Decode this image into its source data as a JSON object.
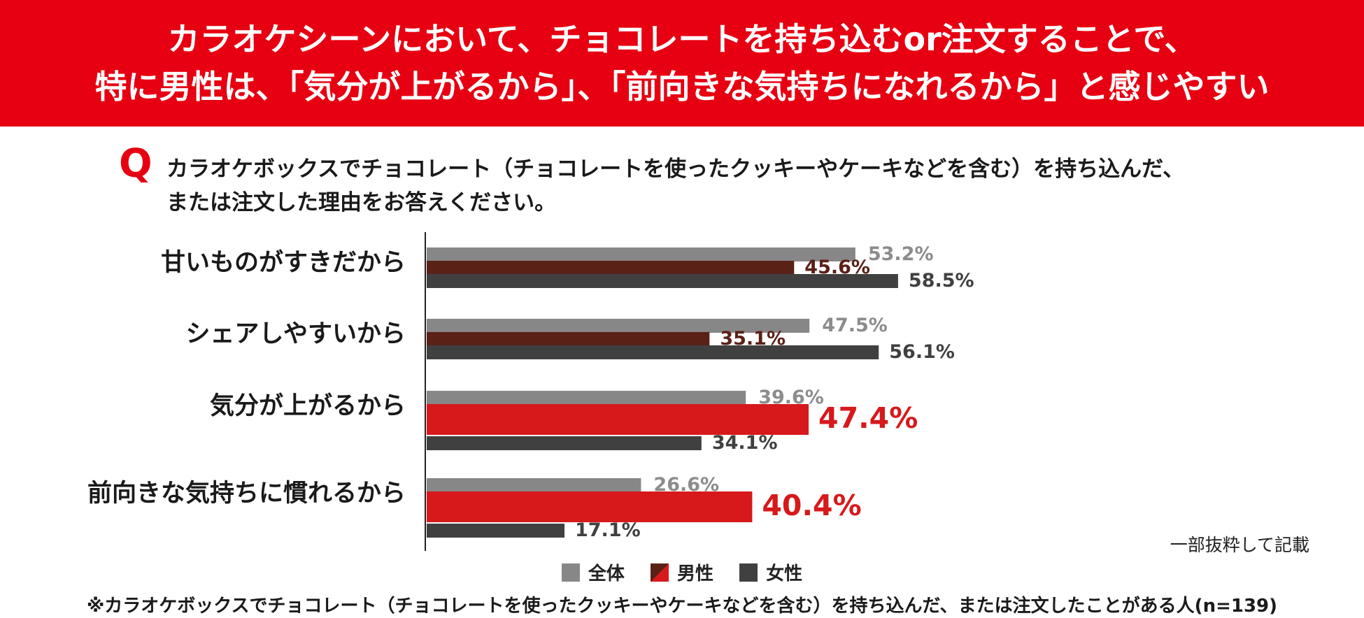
{
  "title": {
    "line1": "カラオケシーンにおいて、チョコレートを持ち込むor注文することで、",
    "line2": "特に男性は、「気分が上がるから」、「前向きな気持ちになれるから」と感じやすい"
  },
  "question": {
    "mark": "Q",
    "line1": "カラオケボックスでチョコレート（チョコレートを使ったクッキーやケーキなどを含む）を持ち込んだ、",
    "line2": "または注文した理由をお答えください。"
  },
  "note_extract": "一部抜粋して記載",
  "legend": [
    {
      "label": "全体",
      "color": "#878787"
    },
    {
      "label": "男性",
      "color": "#d7191c"
    },
    {
      "label": "女性",
      "color": "#404040"
    }
  ],
  "footnote": "※カラオケボックスでチョコレート（チョコレートを使ったクッキーやケーキなどを含む）を持ち込んだ、または注文したことがある人(n=139)",
  "chart_data": {
    "type": "bar",
    "orientation": "horizontal",
    "categories": [
      "甘いものがすきだから",
      "シェアしやすいから",
      "気分が上がるから",
      "前向きな気持ちに慣れるから"
    ],
    "series": [
      {
        "name": "全体",
        "values": [
          53.2,
          47.5,
          39.6,
          26.6
        ],
        "labels": [
          "53.2%",
          "47.5%",
          "39.6%",
          "26.6%"
        ]
      },
      {
        "name": "男性",
        "values": [
          45.6,
          35.1,
          47.4,
          40.4
        ],
        "labels": [
          "45.6%",
          "35.1%",
          "47.4%",
          "40.4%"
        ]
      },
      {
        "name": "女性",
        "values": [
          58.5,
          56.1,
          34.1,
          17.1
        ],
        "labels": [
          "58.5%",
          "56.1%",
          "34.1%",
          "17.1%"
        ]
      }
    ],
    "male_highlight": [
      false,
      false,
      true,
      true
    ],
    "colors": {
      "total": "#878787",
      "total_label": "#8c8c8c",
      "male_dark": "#5a2117",
      "male_highlight": "#d7191c",
      "female": "#404040",
      "female_label": "#404040"
    },
    "xlim": [
      0,
      100
    ],
    "legend_position": "bottom"
  }
}
